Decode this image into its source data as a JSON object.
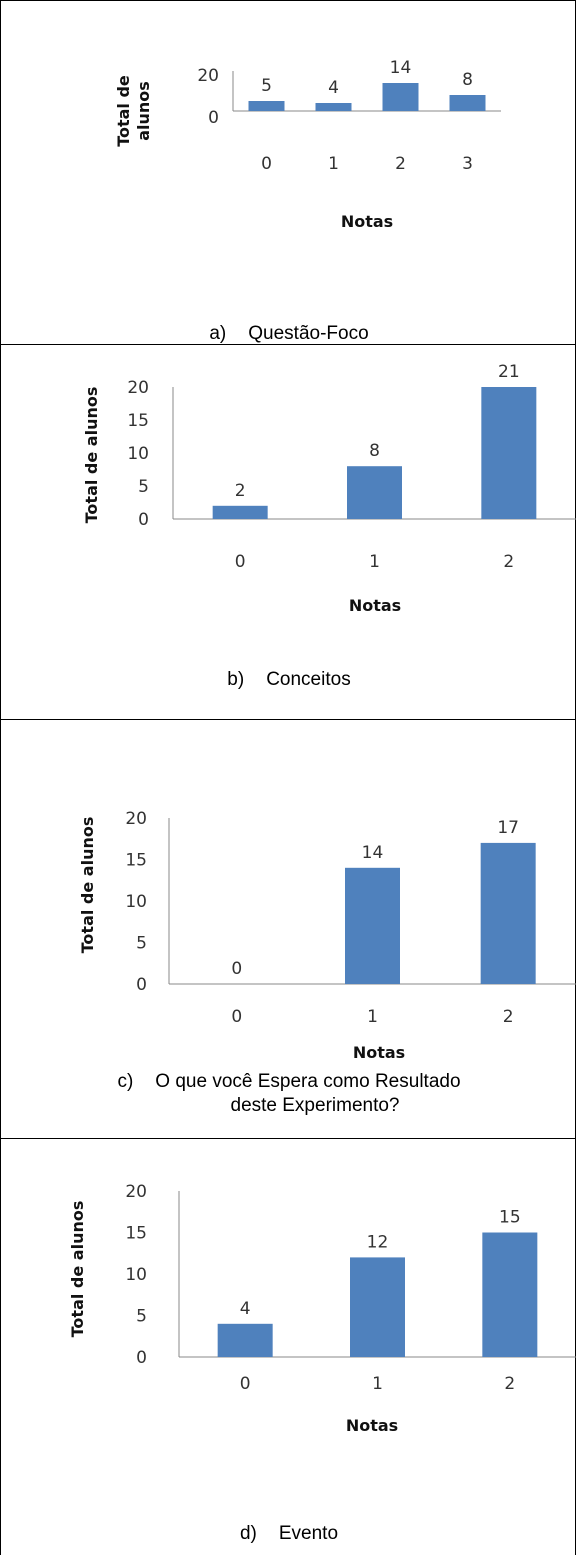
{
  "chart_data": [
    {
      "type": "bar",
      "categories": [
        "0",
        "1",
        "2",
        "3"
      ],
      "values": [
        5,
        4,
        14,
        8
      ],
      "data_labels": [
        "5",
        "4",
        "14",
        "8"
      ],
      "yticks": [
        "0",
        "20"
      ],
      "ylim": [
        0,
        20
      ],
      "xlabel": "Notas",
      "ylabel": "Total de alunos",
      "caption_letter": "a)",
      "caption": "Questão-Foco",
      "color": "#4f81bd"
    },
    {
      "type": "bar",
      "categories": [
        "0",
        "1",
        "2"
      ],
      "values": [
        2,
        8,
        21
      ],
      "data_labels": [
        "2",
        "8",
        "21"
      ],
      "yticks": [
        "0",
        "5",
        "10",
        "15",
        "20"
      ],
      "ylim": [
        0,
        20
      ],
      "xlabel": "Notas",
      "ylabel": "Total de alunos",
      "caption_letter": "b)",
      "caption": "Conceitos",
      "color": "#4f81bd"
    },
    {
      "type": "bar",
      "categories": [
        "0",
        "1",
        "2"
      ],
      "values": [
        0,
        14,
        17
      ],
      "data_labels": [
        "0",
        "14",
        "17"
      ],
      "yticks": [
        "0",
        "5",
        "10",
        "15",
        "20"
      ],
      "ylim": [
        0,
        20
      ],
      "xlabel": "Notas",
      "ylabel": "Total de alunos",
      "caption_letter": "c)",
      "caption": "O que você Espera como Resultado",
      "caption_cont": "deste Experimento?",
      "color": "#4f81bd"
    },
    {
      "type": "bar",
      "categories": [
        "0",
        "1",
        "2"
      ],
      "values": [
        4,
        12,
        15
      ],
      "data_labels": [
        "4",
        "12",
        "15"
      ],
      "yticks": [
        "0",
        "5",
        "10",
        "15",
        "20"
      ],
      "ylim": [
        0,
        20
      ],
      "xlabel": "Notas",
      "ylabel": "Total de alunos",
      "caption_letter": "d)",
      "caption": "Evento",
      "color": "#4f81bd"
    }
  ]
}
